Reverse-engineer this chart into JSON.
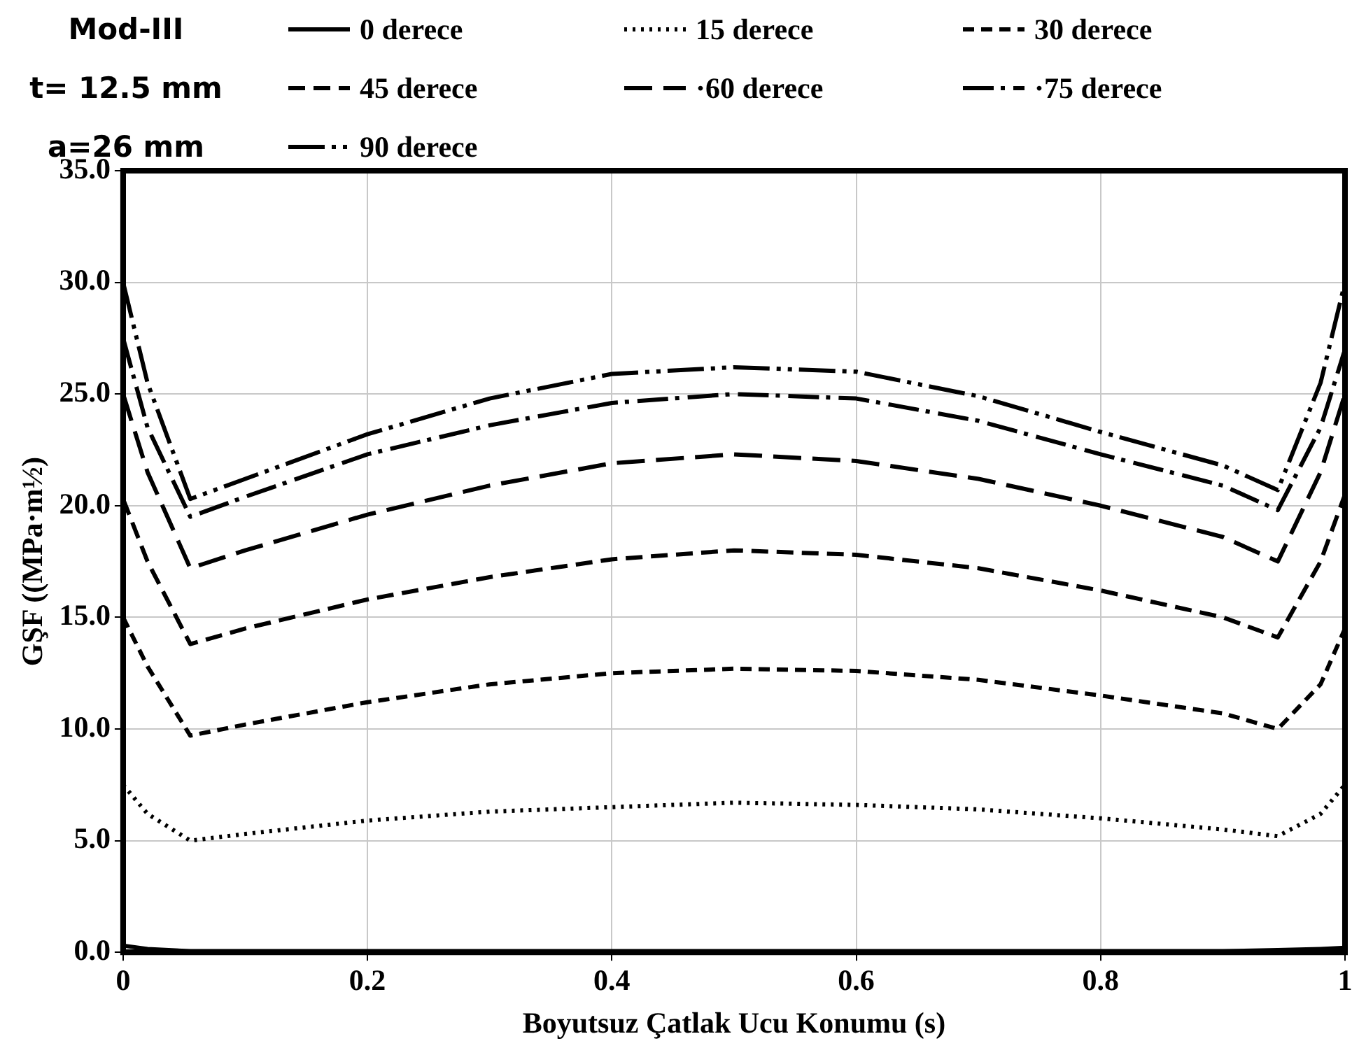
{
  "chart_data": {
    "type": "line",
    "xlabel": "Boyutsuz Çatlak Ucu Konumu (s)",
    "ylabel": "GŞF ((MPa·m½)",
    "annotations": [
      "Mod-III",
      "t= 12.5 mm",
      "a=26 mm"
    ],
    "x": [
      0,
      0.02,
      0.055,
      0.1,
      0.2,
      0.3,
      0.4,
      0.5,
      0.6,
      0.7,
      0.8,
      0.9,
      0.945,
      0.98,
      1
    ],
    "series": [
      {
        "name": "0 derece",
        "color": "#000000",
        "line_style": "solid",
        "values": [
          0.3,
          0.15,
          0.05,
          0.05,
          0.05,
          0.05,
          0.05,
          0.05,
          0.05,
          0.05,
          0.05,
          0.05,
          0.1,
          0.15,
          0.2
        ]
      },
      {
        "name": "15 derece",
        "color": "#000000",
        "line_style": "dotted",
        "values": [
          7.5,
          6.2,
          5.0,
          5.3,
          5.9,
          6.3,
          6.5,
          6.7,
          6.6,
          6.4,
          6.0,
          5.5,
          5.2,
          6.2,
          7.5
        ]
      },
      {
        "name": "30 derece",
        "color": "#000000",
        "line_style": "dashed",
        "values": [
          15.0,
          12.8,
          9.7,
          10.2,
          11.2,
          12.0,
          12.5,
          12.7,
          12.6,
          12.2,
          11.5,
          10.7,
          10.0,
          12.0,
          14.5
        ]
      },
      {
        "name": "45 derece",
        "color": "#000000",
        "line_style": "dashed",
        "values": [
          20.3,
          17.5,
          13.8,
          14.5,
          15.8,
          16.8,
          17.6,
          18.0,
          17.8,
          17.2,
          16.2,
          15.0,
          14.1,
          17.5,
          20.5
        ]
      },
      {
        "name": "·60 derece",
        "color": "#000000",
        "line_style": "dashed",
        "values": [
          25,
          21.5,
          17.2,
          18.0,
          19.6,
          20.9,
          21.9,
          22.3,
          22.0,
          21.2,
          20.0,
          18.6,
          17.5,
          21.5,
          25
        ]
      },
      {
        "name": "·75 derece",
        "color": "#000000",
        "line_style": "dashed",
        "values": [
          27.5,
          23.5,
          19.5,
          20.4,
          22.3,
          23.6,
          24.6,
          25.0,
          24.8,
          23.8,
          22.3,
          20.9,
          19.8,
          23.5,
          27
        ]
      },
      {
        "name": "90 derece",
        "color": "#000000",
        "line_style": "dashed",
        "values": [
          30,
          25.5,
          20.3,
          21.2,
          23.2,
          24.8,
          25.9,
          26.2,
          26.0,
          24.9,
          23.3,
          21.8,
          20.7,
          25.5,
          30
        ]
      }
    ],
    "xlim": [
      0,
      1
    ],
    "xticks": [
      0,
      0.2,
      0.4,
      0.6,
      0.8,
      1
    ],
    "ylim": [
      0,
      35
    ],
    "yticks": [
      {
        "value": 0,
        "label": "0.0"
      },
      {
        "value": 5,
        "label": "5.0"
      },
      {
        "value": 10,
        "label": "10.0"
      },
      {
        "value": 15,
        "label": "15.0"
      },
      {
        "value": 20,
        "label": "20.0"
      },
      {
        "value": 25,
        "label": "25.0"
      },
      {
        "value": 30,
        "label": "30.0"
      },
      {
        "value": 35,
        "label": "35.0"
      }
    ],
    "grid": true,
    "legend": "top",
    "marker": "none"
  }
}
